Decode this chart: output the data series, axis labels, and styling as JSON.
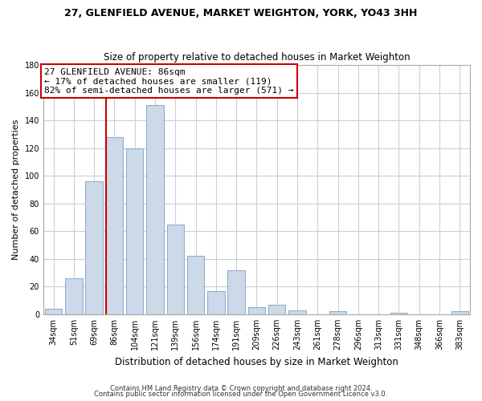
{
  "title_line1": "27, GLENFIELD AVENUE, MARKET WEIGHTON, YORK, YO43 3HH",
  "title_line2": "Size of property relative to detached houses in Market Weighton",
  "xlabel": "Distribution of detached houses by size in Market Weighton",
  "ylabel": "Number of detached properties",
  "bar_labels": [
    "34sqm",
    "51sqm",
    "69sqm",
    "86sqm",
    "104sqm",
    "121sqm",
    "139sqm",
    "156sqm",
    "174sqm",
    "191sqm",
    "209sqm",
    "226sqm",
    "243sqm",
    "261sqm",
    "278sqm",
    "296sqm",
    "313sqm",
    "331sqm",
    "348sqm",
    "366sqm",
    "383sqm"
  ],
  "bar_values": [
    4,
    26,
    96,
    128,
    120,
    151,
    65,
    42,
    17,
    32,
    5,
    7,
    3,
    0,
    2,
    0,
    0,
    1,
    0,
    0,
    2
  ],
  "bar_color": "#ccd9e8",
  "bar_edge_color": "#8fb0cc",
  "property_bar_index": 3,
  "vline_color": "#cc0000",
  "annotation_title": "27 GLENFIELD AVENUE: 86sqm",
  "annotation_line1": "← 17% of detached houses are smaller (119)",
  "annotation_line2": "82% of semi-detached houses are larger (571) →",
  "annotation_box_color": "#ffffff",
  "annotation_box_edge": "#cc0000",
  "ylim": [
    0,
    180
  ],
  "yticks": [
    0,
    20,
    40,
    60,
    80,
    100,
    120,
    140,
    160,
    180
  ],
  "footer_line1": "Contains HM Land Registry data © Crown copyright and database right 2024.",
  "footer_line2": "Contains public sector information licensed under the Open Government Licence v3.0.",
  "background_color": "#ffffff",
  "grid_color": "#c8d0d8",
  "title1_fontsize": 9,
  "title2_fontsize": 8.5,
  "ylabel_fontsize": 8,
  "xlabel_fontsize": 8.5,
  "tick_fontsize": 7,
  "footer_fontsize": 6,
  "ann_fontsize": 8
}
